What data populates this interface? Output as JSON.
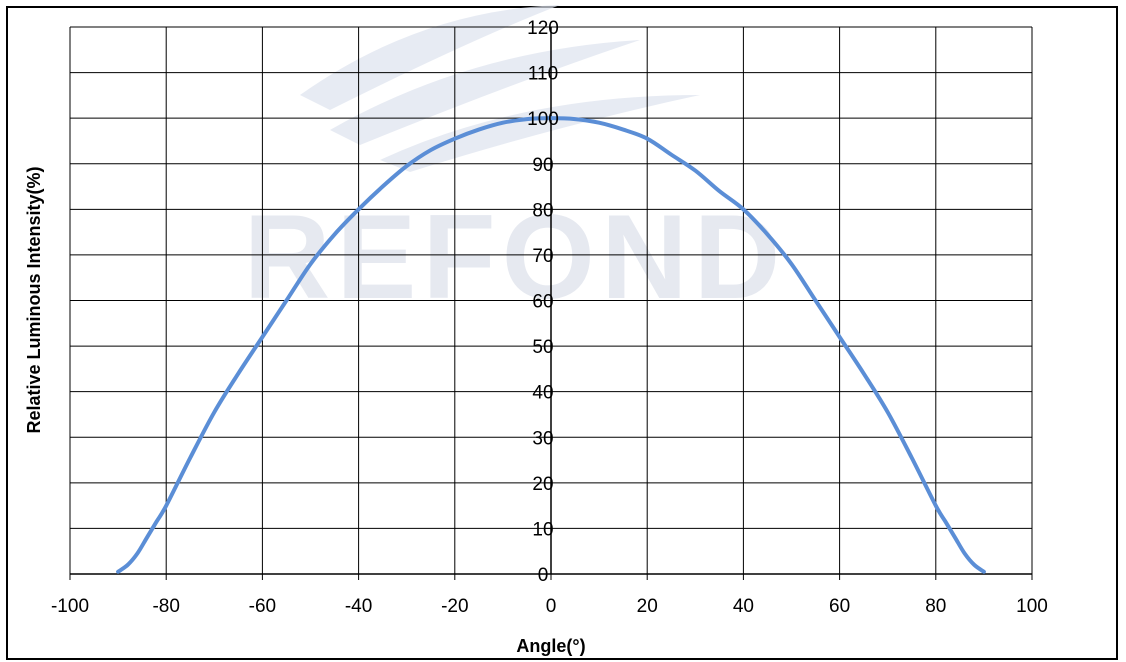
{
  "chart_data": {
    "type": "line",
    "title": "",
    "xlabel": "Angle(°)",
    "ylabel": "Relative Luminous Intensity(%)",
    "xlim": [
      -100,
      100
    ],
    "ylim": [
      0,
      120
    ],
    "x_ticks": [
      "-100",
      "-80",
      "-60",
      "-40",
      "-20",
      "0",
      "20",
      "40",
      "60",
      "80",
      "100"
    ],
    "y_ticks": [
      "0",
      "10",
      "20",
      "30",
      "40",
      "50",
      "60",
      "70",
      "80",
      "90",
      "100",
      "110",
      "120"
    ],
    "grid": true,
    "legend": "none",
    "series": [
      {
        "color": "#5B8ED6",
        "x": [
          -90,
          -88,
          -86,
          -84,
          -82,
          -80,
          -75,
          -70,
          -65,
          -60,
          -55,
          -50,
          -45,
          -40,
          -35,
          -30,
          -25,
          -20,
          -15,
          -10,
          -5,
          0,
          5,
          10,
          15,
          20,
          25,
          30,
          35,
          40,
          45,
          50,
          55,
          60,
          65,
          70,
          75,
          80,
          82,
          84,
          86,
          88,
          90
        ],
        "y": [
          0.5,
          2,
          4.5,
          8,
          11.5,
          15,
          25.5,
          35.5,
          44,
          52,
          60,
          68,
          74.5,
          80,
          85,
          89.5,
          93,
          95.5,
          97.5,
          99,
          99.8,
          100,
          99.8,
          99,
          97.5,
          95.5,
          92,
          88.5,
          84,
          80,
          74.5,
          68,
          60,
          52,
          44,
          35.5,
          25.5,
          15,
          11.5,
          8,
          4.5,
          2,
          0.5
        ]
      }
    ],
    "watermark": "REFOND"
  }
}
